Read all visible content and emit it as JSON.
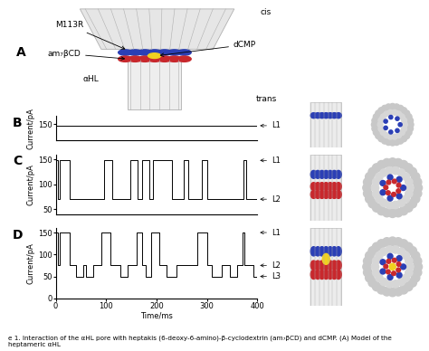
{
  "caption": "e 1. Interaction of the αHL pore with heptakis (6-deoxy-6-amino)-β-cyclodextrin (am₇βCD) and dCMP. (A) Model of the heptameric αHL",
  "model": {
    "label": "A",
    "M113R": "M113R",
    "cd": "am₇βCD",
    "dcmp": "dCMP",
    "pore": "αHL",
    "cis": "cis",
    "trans": "trans"
  },
  "chart_data": [
    {
      "label": "B",
      "type": "line",
      "ylabel": "Current/pA",
      "color": "#000000",
      "x": [
        0,
        400
      ],
      "values": [
        148,
        148
      ],
      "xlim": [
        0,
        400
      ],
      "xticks": [
        0,
        100,
        200,
        300,
        400
      ],
      "ylim": [
        130,
        160
      ],
      "yticks": [
        150
      ],
      "tick_labels": "y",
      "levels": [
        {
          "name": "L1",
          "value": 148
        }
      ]
    },
    {
      "label": "C",
      "type": "line",
      "ylabel": "Current/pA",
      "color": "#000000",
      "x": [
        0,
        5,
        8,
        28,
        95,
        112,
        148,
        163,
        172,
        185,
        192,
        230,
        253,
        263,
        290,
        300,
        372,
        378,
        400
      ],
      "values": [
        148,
        70,
        148,
        70,
        148,
        70,
        148,
        70,
        148,
        70,
        148,
        70,
        148,
        70,
        148,
        70,
        148,
        70,
        70
      ],
      "xlim": [
        0,
        400
      ],
      "xticks": [
        0,
        100,
        200,
        300,
        400
      ],
      "ylim": [
        40,
        160
      ],
      "yticks": [
        50,
        100,
        150
      ],
      "tick_labels": "y",
      "levels": [
        {
          "name": "L1",
          "value": 148
        },
        {
          "name": "L2",
          "value": 70
        }
      ]
    },
    {
      "label": "D",
      "type": "line",
      "ylabel": "Current/pA",
      "xlabel": "Time/ms",
      "color": "#000000",
      "x": [
        0,
        4,
        8,
        28,
        40,
        55,
        60,
        75,
        90,
        108,
        128,
        143,
        160,
        172,
        178,
        190,
        205,
        220,
        240,
        280,
        300,
        310,
        330,
        345,
        360,
        370,
        375,
        392,
        400
      ],
      "values": [
        150,
        75,
        150,
        75,
        50,
        75,
        50,
        75,
        150,
        75,
        50,
        75,
        150,
        75,
        50,
        150,
        75,
        50,
        75,
        150,
        75,
        50,
        75,
        50,
        75,
        150,
        75,
        50,
        50
      ],
      "xlim": [
        0,
        400
      ],
      "xticks": [
        0,
        100,
        200,
        300,
        400
      ],
      "ylim": [
        0,
        160
      ],
      "yticks": [
        0,
        50,
        100,
        150
      ],
      "tick_labels": true,
      "levels": [
        {
          "name": "L1",
          "value": 150
        },
        {
          "name": "L2",
          "value": 75
        },
        {
          "name": "L3",
          "value": 50
        }
      ]
    }
  ]
}
